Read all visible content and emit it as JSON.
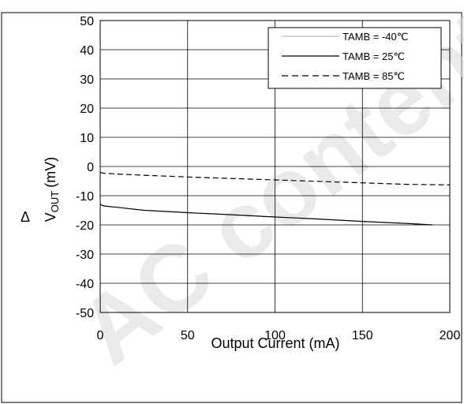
{
  "watermark": "AC content s",
  "chart_data": {
    "type": "line",
    "title": "",
    "xlabel": "Output Current (mA)",
    "ylabel_symbol": "Δ",
    "ylabel_var": "V",
    "ylabel_sub": "OUT",
    "ylabel_unit": "(mV)",
    "xlim": [
      0,
      200
    ],
    "ylim": [
      -50,
      50
    ],
    "xticks": [
      0,
      50,
      100,
      150,
      200
    ],
    "yticks": [
      -50,
      -40,
      -30,
      -20,
      -10,
      0,
      10,
      20,
      30,
      40,
      50
    ],
    "grid": true,
    "legend_position": "top-right",
    "series": [
      {
        "name": "TAMB = -40℃",
        "style": "thin-solid",
        "color": "#000000",
        "x": [],
        "y": []
      },
      {
        "name": "TAMB = 25℃",
        "style": "solid",
        "color": "#000000",
        "x": [
          0,
          2,
          10,
          25,
          50,
          75,
          100,
          125,
          150,
          175,
          190
        ],
        "y": [
          -13,
          -13.5,
          -14,
          -15,
          -15.8,
          -16.5,
          -17.3,
          -18,
          -18.8,
          -19.5,
          -20
        ]
      },
      {
        "name": "TAMB = 85℃",
        "style": "dashed",
        "color": "#000000",
        "x": [
          0,
          2,
          10,
          25,
          50,
          75,
          100,
          125,
          150,
          175,
          200
        ],
        "y": [
          -2,
          -2.3,
          -2.6,
          -3,
          -3.6,
          -4.1,
          -4.6,
          -5.1,
          -5.6,
          -6.1,
          -6.3
        ]
      }
    ]
  }
}
